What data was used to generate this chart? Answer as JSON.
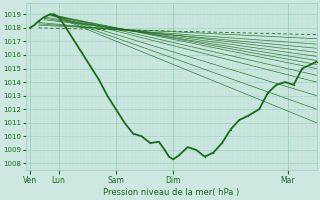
{
  "xlabel": "Pression niveau de la mer( hPa )",
  "bg_color": "#cce8e0",
  "grid_minor_color": "#b8ddd4",
  "grid_major_color": "#a0ccc0",
  "line_color": "#1a6b1a",
  "ylim": [
    1007.5,
    1019.8
  ],
  "yticks": [
    1008,
    1009,
    1010,
    1011,
    1012,
    1013,
    1014,
    1015,
    1016,
    1017,
    1018,
    1019
  ],
  "xtick_labels": [
    "Ven",
    "Lun",
    "Sam",
    "Dim",
    "Mar"
  ],
  "xtick_pos": [
    0.0,
    1.0,
    3.0,
    5.0,
    9.0
  ],
  "xlim": [
    -0.15,
    10.0
  ],
  "xmax": 10.0,
  "fan_lines": [
    [
      0.3,
      10.0,
      1018.2,
      1017.2
    ],
    [
      0.3,
      10.0,
      1018.3,
      1016.8
    ],
    [
      0.3,
      10.0,
      1018.4,
      1016.5
    ],
    [
      0.5,
      10.0,
      1018.6,
      1016.2
    ],
    [
      0.5,
      10.0,
      1018.7,
      1015.9
    ],
    [
      0.5,
      10.0,
      1018.8,
      1015.6
    ],
    [
      0.7,
      10.0,
      1018.9,
      1015.3
    ],
    [
      0.7,
      10.0,
      1019.0,
      1015.0
    ],
    [
      0.7,
      10.0,
      1019.0,
      1014.5
    ],
    [
      0.7,
      10.0,
      1019.0,
      1014.0
    ],
    [
      0.7,
      10.0,
      1019.0,
      1013.0
    ],
    [
      0.7,
      10.0,
      1019.0,
      1012.0
    ],
    [
      0.7,
      10.0,
      1019.0,
      1011.0
    ]
  ],
  "dashed_line_x": [
    0.3,
    10.0
  ],
  "dashed_line_y": [
    1018.0,
    1017.5
  ],
  "actual_x": [
    0.0,
    0.15,
    0.3,
    0.5,
    0.7,
    0.85,
    1.0,
    1.2,
    1.5,
    1.8,
    2.1,
    2.4,
    2.7,
    3.0,
    3.3,
    3.6,
    3.9,
    4.2,
    4.5,
    4.7,
    4.85,
    5.0,
    5.2,
    5.5,
    5.8,
    6.1,
    6.4,
    6.7,
    7.0,
    7.3,
    7.6,
    8.0,
    8.3,
    8.6,
    8.9,
    9.2,
    9.5,
    9.8,
    10.0
  ],
  "actual_y": [
    1018.0,
    1018.2,
    1018.5,
    1018.8,
    1019.0,
    1019.0,
    1018.8,
    1018.2,
    1017.2,
    1016.2,
    1015.2,
    1014.2,
    1013.0,
    1012.0,
    1011.0,
    1010.2,
    1010.0,
    1009.5,
    1009.6,
    1009.0,
    1008.5,
    1008.3,
    1008.6,
    1009.2,
    1009.0,
    1008.5,
    1008.8,
    1009.5,
    1010.5,
    1011.2,
    1011.5,
    1012.0,
    1013.2,
    1013.8,
    1014.0,
    1013.8,
    1015.0,
    1015.3,
    1015.5
  ]
}
